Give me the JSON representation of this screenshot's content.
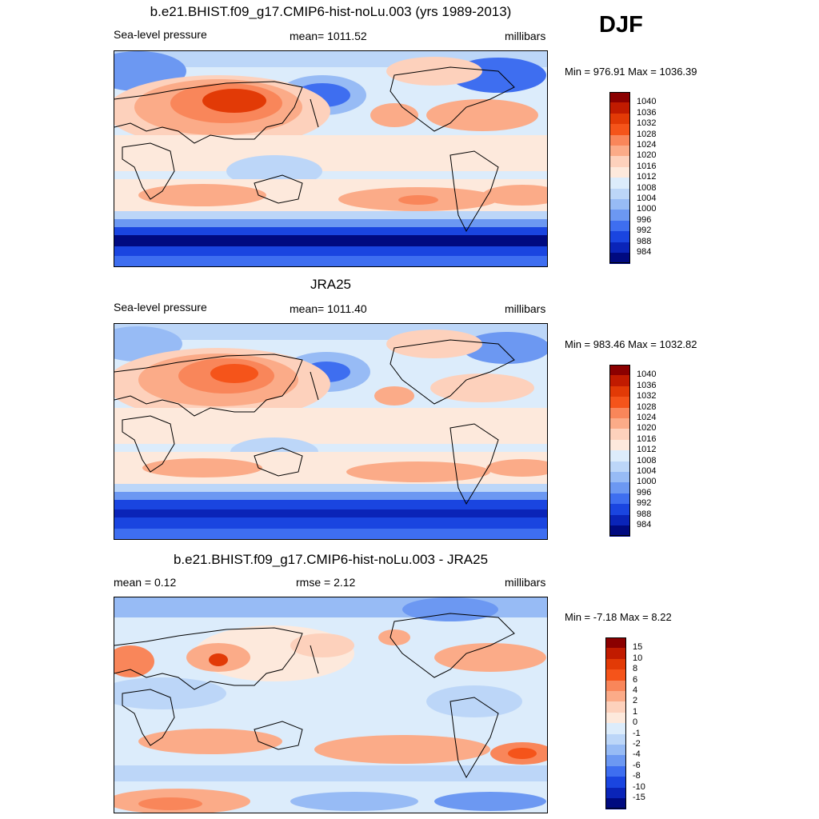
{
  "season": "DJF",
  "panels": [
    {
      "title": "b.e21.BHIST.f09_g17.CMIP6-hist-noLu.003 (yrs 1989-2013)",
      "left": "Sea-level pressure",
      "center": "mean= 1011.52",
      "right": "millibars",
      "minmax": "Min = 976.91 Max = 1036.39",
      "kind": "abs"
    },
    {
      "title": "JRA25",
      "left": "Sea-level pressure",
      "center": "mean= 1011.40",
      "right": "millibars",
      "minmax": "Min = 983.46 Max = 1032.82",
      "kind": "abs"
    },
    {
      "title": "b.e21.BHIST.f09_g17.CMIP6-hist-noLu.003 - JRA25",
      "left": "mean =   0.12",
      "center": "rmse =   2.12",
      "right": "millibars",
      "minmax": "Min =  -7.18 Max =   8.22",
      "kind": "diff"
    }
  ],
  "colorbars": {
    "abs": {
      "labels": [
        "1040",
        "1036",
        "1032",
        "1028",
        "1024",
        "1020",
        "1016",
        "1012",
        "1008",
        "1004",
        "1000",
        "996",
        "992",
        "988",
        "984"
      ],
      "colors": [
        "#8b0000",
        "#c11b00",
        "#e23a06",
        "#f5541a",
        "#f9865a",
        "#fbab88",
        "#fdd1bc",
        "#fde9dc",
        "#dcecfb",
        "#bcd6f8",
        "#97bbf5",
        "#6c98f2",
        "#3e6ef0",
        "#1a45e0",
        "#0a24b8",
        "#000a80"
      ]
    },
    "diff": {
      "labels": [
        "15",
        "10",
        "8",
        "6",
        "4",
        "2",
        "1",
        "0",
        "-1",
        "-2",
        "-4",
        "-6",
        "-8",
        "-10",
        "-15"
      ],
      "colors": [
        "#8b0000",
        "#c11b00",
        "#e23a06",
        "#f5541a",
        "#f9865a",
        "#fbab88",
        "#fdd1bc",
        "#fde9dc",
        "#dcecfb",
        "#bcd6f8",
        "#97bbf5",
        "#6c98f2",
        "#3e6ef0",
        "#1a45e0",
        "#0a24b8",
        "#000a80"
      ]
    }
  }
}
